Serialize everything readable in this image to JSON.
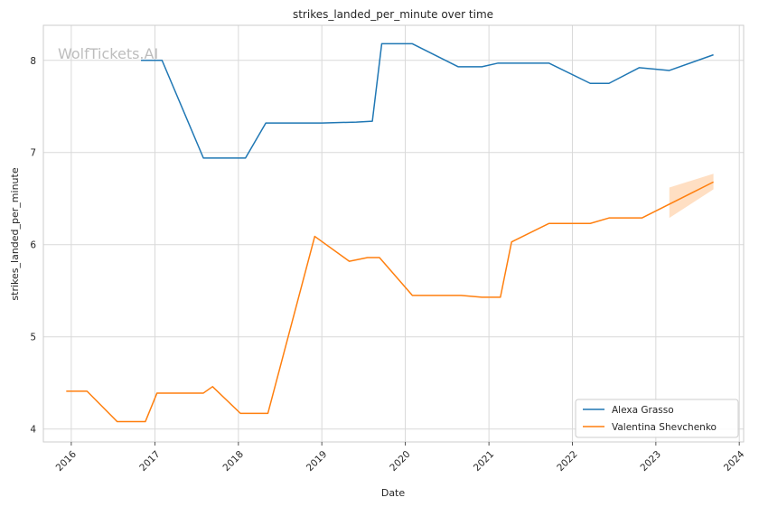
{
  "chart_data": {
    "type": "line",
    "title": "strikes_landed_per_minute over time",
    "xlabel": "Date",
    "ylabel": "strikes_landed_per_minute",
    "watermark": "WolfTickets.AI",
    "x_ticks": [
      "2016",
      "2017",
      "2018",
      "2019",
      "2020",
      "2021",
      "2022",
      "2023",
      "2024"
    ],
    "y_ticks": [
      4,
      5,
      6,
      7,
      8
    ],
    "xlim": [
      "2015-09-01",
      "2024-01-20"
    ],
    "ylim": [
      3.86,
      8.38
    ],
    "grid": true,
    "legend_position": "lower-right",
    "series": [
      {
        "name": "Alexa Grasso",
        "color": "#1f77b4",
        "points": [
          [
            "2016-11-01",
            8.0
          ],
          [
            "2017-02-01",
            8.0
          ],
          [
            "2017-08-01",
            6.94
          ],
          [
            "2018-02-01",
            6.94
          ],
          [
            "2018-05-01",
            7.32
          ],
          [
            "2019-01-01",
            7.32
          ],
          [
            "2019-06-01",
            7.33
          ],
          [
            "2019-08-10",
            7.34
          ],
          [
            "2019-09-20",
            8.18
          ],
          [
            "2020-02-01",
            8.18
          ],
          [
            "2020-08-20",
            7.93
          ],
          [
            "2020-12-01",
            7.93
          ],
          [
            "2021-02-10",
            7.97
          ],
          [
            "2021-09-20",
            7.97
          ],
          [
            "2022-03-20",
            7.75
          ],
          [
            "2022-06-10",
            7.75
          ],
          [
            "2022-10-20",
            7.92
          ],
          [
            "2023-03-01",
            7.89
          ],
          [
            "2023-09-10",
            8.06
          ]
        ]
      },
      {
        "name": "Valentina Shevchenko",
        "color": "#ff7f0e",
        "points": [
          [
            "2015-12-10",
            4.41
          ],
          [
            "2016-03-10",
            4.41
          ],
          [
            "2016-07-20",
            4.08
          ],
          [
            "2016-11-20",
            4.08
          ],
          [
            "2017-01-10",
            4.39
          ],
          [
            "2017-08-01",
            4.39
          ],
          [
            "2017-09-10",
            4.46
          ],
          [
            "2018-01-10",
            4.17
          ],
          [
            "2018-05-10",
            4.17
          ],
          [
            "2018-12-01",
            6.09
          ],
          [
            "2019-05-01",
            5.82
          ],
          [
            "2019-07-20",
            5.86
          ],
          [
            "2019-09-10",
            5.86
          ],
          [
            "2020-02-01",
            5.45
          ],
          [
            "2020-09-01",
            5.45
          ],
          [
            "2020-12-01",
            5.43
          ],
          [
            "2021-02-20",
            5.43
          ],
          [
            "2021-04-10",
            6.03
          ],
          [
            "2021-09-20",
            6.23
          ],
          [
            "2022-03-20",
            6.23
          ],
          [
            "2022-06-10",
            6.29
          ],
          [
            "2022-11-01",
            6.29
          ],
          [
            "2023-09-10",
            6.68
          ]
        ],
        "band": {
          "x": [
            "2023-03-01",
            "2023-09-10"
          ],
          "lower": [
            6.29,
            6.6
          ],
          "upper": [
            6.62,
            6.77
          ]
        }
      }
    ]
  }
}
